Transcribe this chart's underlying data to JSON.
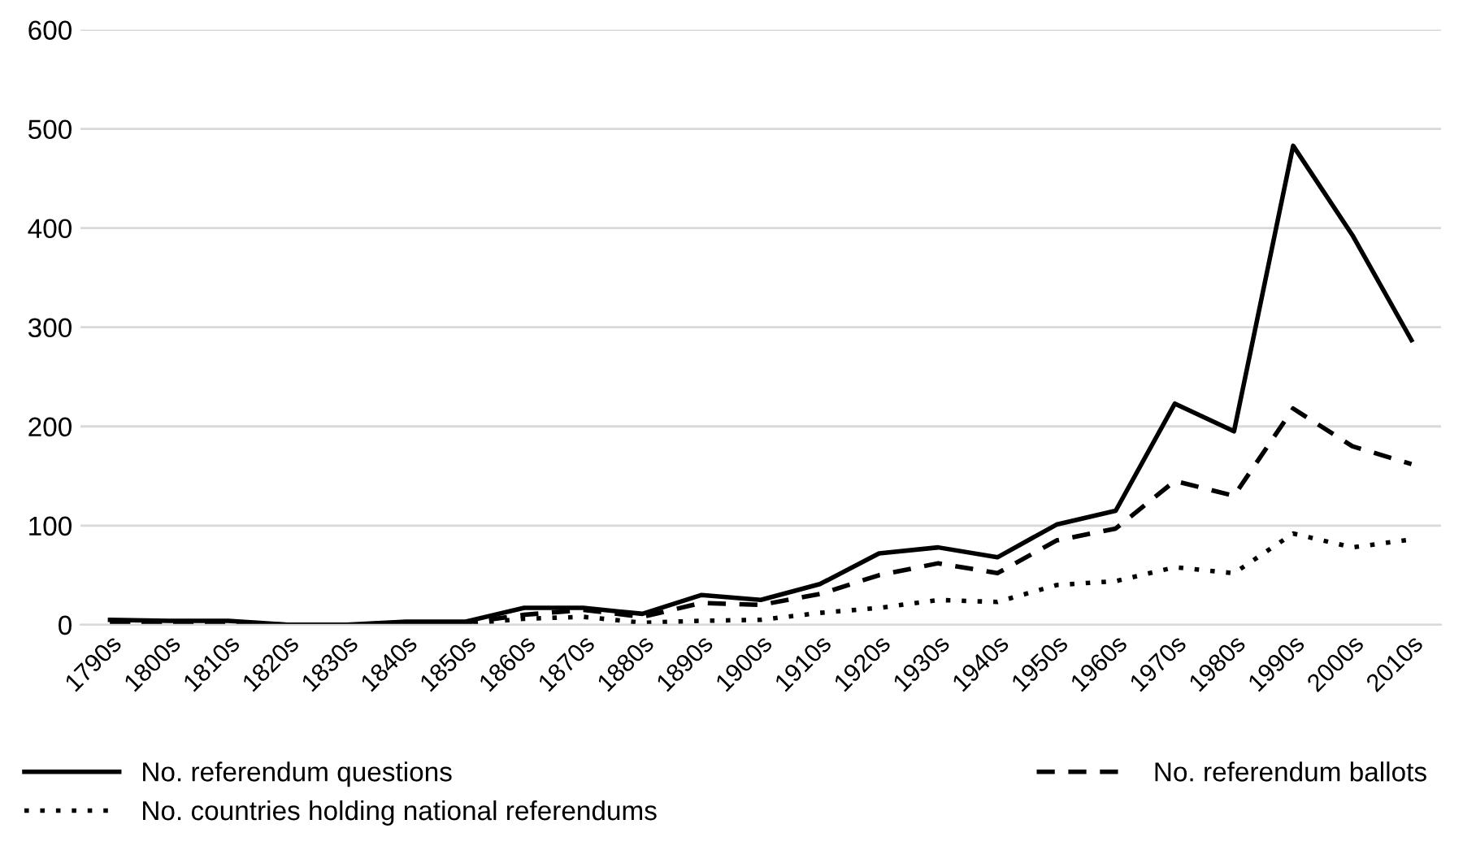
{
  "chart_data": {
    "type": "line",
    "categories": [
      "1790s",
      "1800s",
      "1810s",
      "1820s",
      "1830s",
      "1840s",
      "1850s",
      "1860s",
      "1870s",
      "1880s",
      "1890s",
      "1900s",
      "1910s",
      "1920s",
      "1930s",
      "1940s",
      "1950s",
      "1960s",
      "1970s",
      "1980s",
      "1990s",
      "2000s",
      "2010s"
    ],
    "series": [
      {
        "name": "No. referendum questions",
        "color": "#000000",
        "line_style": "solid",
        "values": [
          5,
          4,
          4,
          0,
          0,
          3,
          3,
          17,
          17,
          11,
          30,
          25,
          41,
          72,
          78,
          68,
          101,
          115,
          223,
          195,
          483,
          393,
          287
        ]
      },
      {
        "name": "No. referendum ballots",
        "color": "#000000",
        "line_style": "dashed",
        "values": [
          2,
          2,
          2,
          0,
          0,
          2,
          2,
          10,
          15,
          8,
          22,
          20,
          31,
          50,
          62,
          52,
          85,
          97,
          145,
          130,
          218,
          180,
          162
        ]
      },
      {
        "name": "No. countries holding national referendums",
        "color": "#000000",
        "line_style": "dotted",
        "values": [
          1,
          1,
          1,
          0,
          0,
          1,
          1,
          6,
          8,
          2,
          4,
          5,
          12,
          17,
          25,
          23,
          40,
          44,
          58,
          52,
          92,
          78,
          86
        ]
      }
    ],
    "ylim": [
      0,
      600
    ],
    "yticks": [
      0,
      100,
      200,
      300,
      400,
      500,
      600
    ],
    "grid": "y",
    "legend": "bottom",
    "marker": "none"
  }
}
